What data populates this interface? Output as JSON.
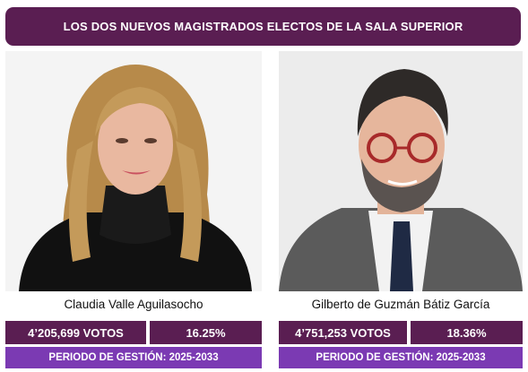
{
  "banner": {
    "title": "LOS DOS NUEVOS MAGISTRADOS ELECTOS DE LA SALA SUPERIOR"
  },
  "candidates": [
    {
      "name": "Claudia Valle Aguilasocho",
      "votes": "4’205,699 VOTOS",
      "percent": "16.25%",
      "period": "PERIODO DE GESTIÓN: 2025-2033"
    },
    {
      "name": "Gilberto de Guzmán Bátiz García",
      "votes": "4’751,253 VOTOS",
      "percent": "18.36%",
      "period": "PERIODO DE GESTIÓN: 2025-2033"
    }
  ],
  "colors": {
    "banner": "#5a1e52",
    "stat": "#5a1e52",
    "period": "#7b3ab3"
  }
}
